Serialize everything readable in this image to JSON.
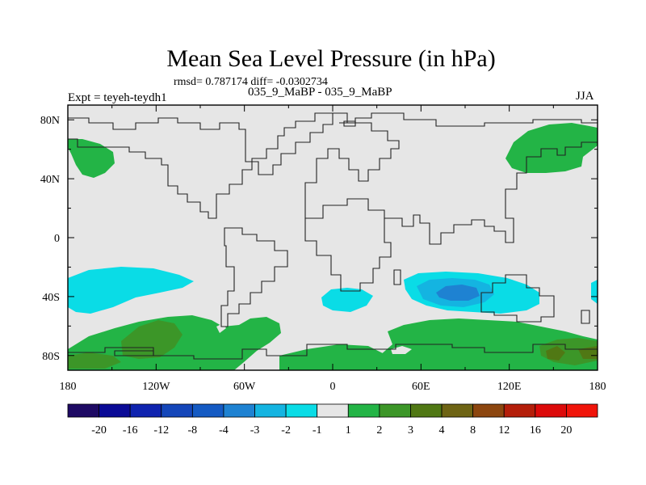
{
  "chart_data": {
    "type": "contour-map",
    "title": "Mean Sea Level Pressure (in hPa)",
    "stats_line": "rmsd= 0.787174 diff= -0.0302734",
    "left_label": "Expt = teyeh-teydh1",
    "center_label": "035_9_MaBP - 035_9_MaBP",
    "right_label": "JJA",
    "x_ticks": [
      "180",
      "120W",
      "60W",
      "0",
      "60E",
      "120E",
      "180"
    ],
    "x_tick_values": [
      -180,
      -120,
      -60,
      0,
      60,
      120,
      180
    ],
    "y_ticks": [
      "80N",
      "40N",
      "0",
      "40S",
      "80S"
    ],
    "y_tick_values": [
      80,
      40,
      0,
      -40,
      -80
    ],
    "xlim": [
      -180,
      180
    ],
    "ylim": [
      -90,
      90
    ],
    "colorbar": {
      "labels": [
        "-20",
        "-16",
        "-12",
        "-8",
        "-4",
        "-3",
        "-2",
        "-1",
        "1",
        "2",
        "3",
        "4",
        "8",
        "12",
        "16",
        "20"
      ],
      "colors": [
        "#1e0a64",
        "#0a0a96",
        "#0f23af",
        "#1446b9",
        "#145ac3",
        "#1e82d2",
        "#14b4e1",
        "#0adce6",
        "#e6e6e6",
        "#23b446",
        "#3c9628",
        "#507814",
        "#6e6414",
        "#8c460f",
        "#b41e0a",
        "#dc0a0a",
        "#f0140a"
      ]
    }
  }
}
